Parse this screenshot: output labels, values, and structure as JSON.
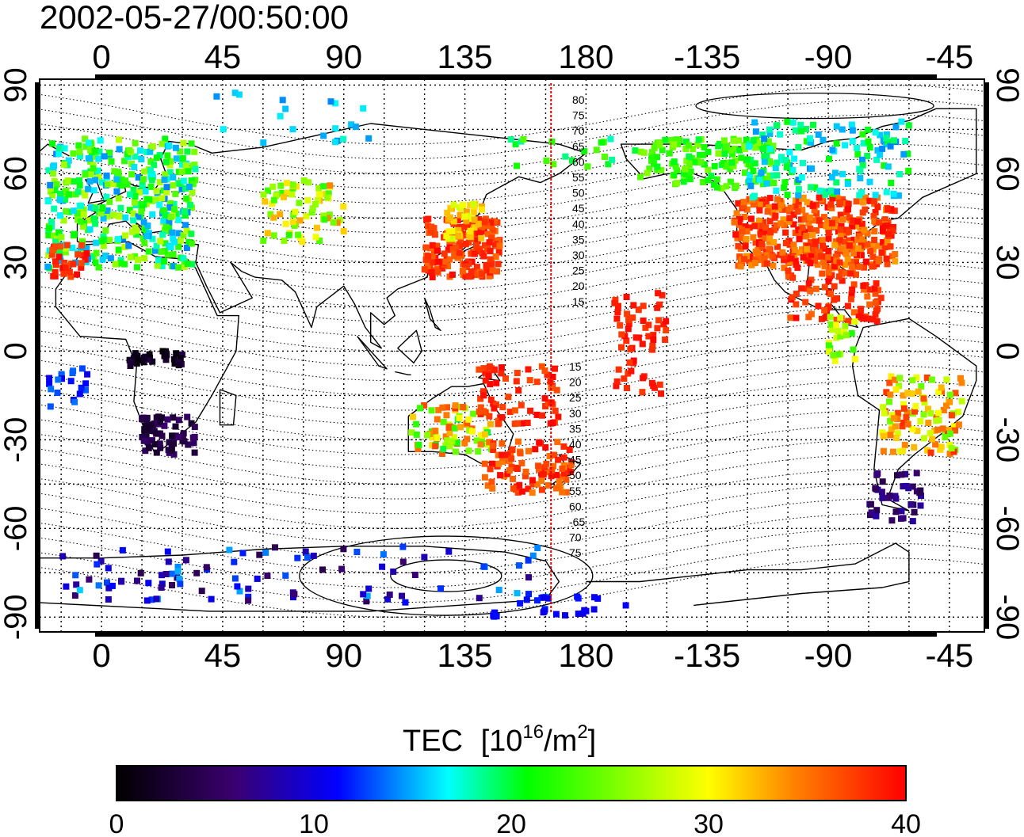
{
  "timestamp": "2002-05-27/00:50:00",
  "axes": {
    "x_ticks": [
      "0",
      "45",
      "90",
      "135",
      "180",
      "-135",
      "-90",
      "-45"
    ],
    "y_ticks": [
      "90",
      "60",
      "30",
      "0",
      "-30",
      "-60",
      "-90"
    ],
    "x_range_deg": [
      -23,
      328
    ],
    "y_range_deg": [
      -95,
      92
    ]
  },
  "map": {
    "projection": "cylindrical-equidistant",
    "meridian_marker_lon": 167,
    "meridian_marker_color": "#e00000",
    "grid": "dotted",
    "contour_labels_north": [
      "80",
      "75",
      "70",
      "65",
      "60",
      "55",
      "50",
      "45",
      "40",
      "35",
      "30",
      "25",
      "20",
      "15"
    ],
    "contour_labels_south": [
      "15",
      "20",
      "25",
      "30",
      "35",
      "40",
      "45",
      "50",
      "55",
      "60",
      "-65",
      "70",
      "75"
    ]
  },
  "colorbar": {
    "title": "TEC",
    "units_prefix": "[10",
    "units_exp": "16",
    "units_mid": "/m",
    "units_exp2": "2",
    "units_suffix": "]",
    "ticks": [
      "0",
      "10",
      "20",
      "30",
      "40"
    ],
    "range": [
      0,
      40
    ],
    "colors": [
      "#000000",
      "#3a0070",
      "#0000ff",
      "#00ffff",
      "#00ff00",
      "#ffff00",
      "#ff8000",
      "#ff0000"
    ]
  }
}
